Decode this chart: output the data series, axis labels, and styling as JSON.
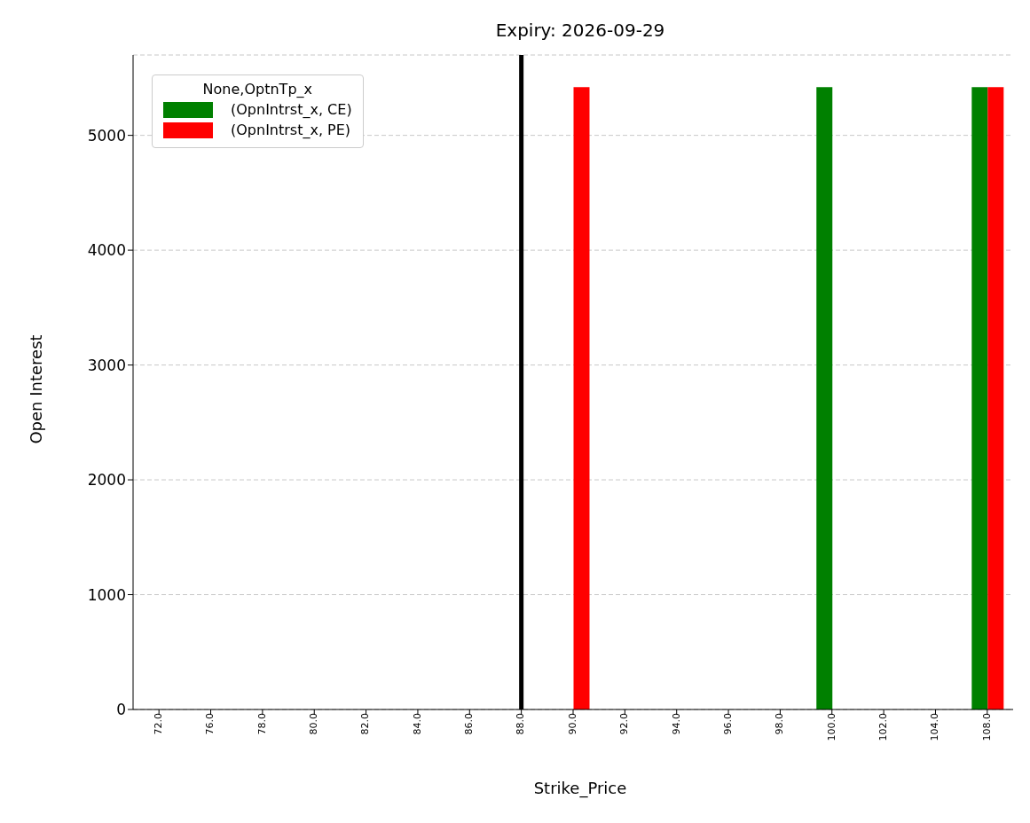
{
  "chart_data": {
    "type": "bar",
    "title": "Expiry: 2026-09-29",
    "xlabel": "Strike_Price",
    "ylabel": "Open Interest",
    "legend_title": "None,OptnTp_x",
    "categories": [
      "72.0",
      "76.0",
      "78.0",
      "80.0",
      "82.0",
      "84.0",
      "86.0",
      "88.0",
      "90.0",
      "92.0",
      "94.0",
      "96.0",
      "98.0",
      "100.0",
      "102.0",
      "104.0",
      "108.0"
    ],
    "series": [
      {
        "name": "(OpnIntrst_x, CE)",
        "color": "#008000",
        "values": [
          0,
          0,
          0,
          0,
          0,
          0,
          0,
          0,
          0,
          0,
          0,
          0,
          0,
          5420,
          0,
          0,
          5420
        ]
      },
      {
        "name": "(OpnIntrst_x, PE)",
        "color": "#ff0000",
        "values": [
          0,
          0,
          0,
          0,
          0,
          0,
          0,
          0,
          5420,
          0,
          0,
          0,
          0,
          0,
          0,
          0,
          5420
        ]
      }
    ],
    "ylim": [
      0,
      5700
    ],
    "yticks": [
      0,
      1000,
      2000,
      3000,
      4000,
      5000
    ],
    "grid": "y",
    "legend": "top left",
    "ref_lines": [
      {
        "axis": "x",
        "value": "88.0",
        "color": "#000000"
      }
    ]
  }
}
